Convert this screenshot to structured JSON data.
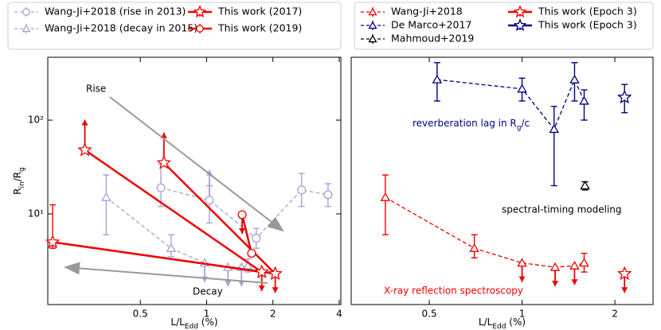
{
  "chart_data": [
    {
      "type": "scatter",
      "log_x": true,
      "log_y": true,
      "xlim": [
        0.19,
        4.07
      ],
      "ylim": [
        1.08,
        468
      ],
      "xticks": [
        0.5,
        1,
        2,
        4
      ],
      "yticks": [
        {
          "value": 10,
          "label": "10¹"
        },
        {
          "value": 100,
          "label": "10²"
        }
      ],
      "xlabel": [
        "L/L",
        "Edd",
        " (%)"
      ],
      "ylabel": [
        "R",
        "in",
        "/R",
        "g"
      ],
      "annotations": [
        "Rise",
        "Decay"
      ],
      "series": [
        {
          "name": "Wang-Ji+2018 (rise in 2013)",
          "color": "#a3a3d9",
          "marker": "circle",
          "linestyle": "dashed",
          "x": [
            0.62,
            1.03,
            1.68,
            2.7,
            3.56
          ],
          "values": [
            19,
            14,
            5.5,
            18,
            16
          ],
          "ylow": [
            12,
            8,
            4.3,
            12,
            12
          ],
          "yhigh": [
            34,
            20,
            7,
            27,
            21
          ],
          "limit": [
            null,
            "up",
            null,
            null,
            null
          ]
        },
        {
          "name": "Wang-Ji+2018 (decay in 2015)",
          "color": "#a3a3d9",
          "marker": "triangle",
          "linestyle": "dashed",
          "x": [
            0.35,
            0.69,
            0.98,
            1.25,
            1.44,
            1.54
          ],
          "values": [
            15,
            4.3,
            3.0,
            2.7,
            2.7,
            2.8
          ],
          "ylow": [
            6,
            3.5,
            null,
            null,
            null,
            2.4
          ],
          "yhigh": [
            26,
            6,
            null,
            null,
            null,
            3.3
          ],
          "limit": [
            null,
            null,
            "down",
            "down",
            "down",
            null
          ]
        },
        {
          "name": "This work (2017)",
          "color": "#ee0000",
          "marker": "star",
          "linestyle": "solid",
          "x": [
            0.28,
            1.78,
            0.2,
            2.05,
            0.64
          ],
          "values": [
            48,
            2.4,
            5,
            2.3,
            35
          ],
          "ylow": [
            null,
            null,
            4.3,
            null,
            null
          ],
          "yhigh": [
            null,
            null,
            12.5,
            null,
            null
          ],
          "limit": [
            "up",
            "down",
            null,
            "down",
            "up"
          ]
        },
        {
          "name": "This work (2019)",
          "color": "#ee0000",
          "marker": "circle",
          "linestyle": "solid",
          "x": [
            1.45,
            1.6
          ],
          "values": [
            9.8,
            3.8
          ],
          "ylow": [
            null,
            null
          ],
          "yhigh": [
            null,
            null
          ],
          "limit": [
            "down",
            null
          ]
        }
      ]
    },
    {
      "type": "scatter",
      "log_x": true,
      "log_y": true,
      "xlim": [
        0.279,
        2.66
      ],
      "ylim": [
        1.08,
        468
      ],
      "xticks": [
        0.5,
        1,
        2
      ],
      "xlabel": [
        "L/L",
        "Edd",
        " (%)"
      ],
      "annotations": [
        [
          "reverberation lag in R",
          "g",
          "/c"
        ],
        "spectral-timing modeling",
        "X-ray reflection spectroscopy"
      ],
      "series": [
        {
          "name": "Wang-Ji+2018",
          "color": "#ee0000",
          "marker": "triangle",
          "linestyle": "dashed",
          "x": [
            0.36,
            0.7,
            1.0,
            1.28,
            1.48,
            1.59
          ],
          "values": [
            15,
            4.3,
            3.0,
            2.7,
            2.8,
            3.0
          ],
          "ylow": [
            6,
            3.4,
            null,
            null,
            null,
            2.4
          ],
          "yhigh": [
            26,
            6,
            null,
            null,
            null,
            3.8
          ],
          "limit": [
            null,
            null,
            "down",
            "down",
            "down",
            null
          ]
        },
        {
          "name": "De Marco+2017",
          "color": "#00007f",
          "marker": "triangle",
          "linestyle": "dashed",
          "x": [
            0.53,
            1.0,
            1.27,
            1.48,
            1.59
          ],
          "values": [
            270,
            215,
            80,
            270,
            160
          ],
          "ylow": [
            160,
            160,
            20,
            160,
            100
          ],
          "yhigh": [
            410,
            280,
            140,
            410,
            210
          ],
          "limit": [
            null,
            null,
            null,
            null,
            null
          ]
        },
        {
          "name": "Mahmoud+2019",
          "color": "#000000",
          "marker": "triangle",
          "linestyle": "dashed",
          "x": [
            1.6
          ],
          "values": [
            20
          ],
          "ylow": [
            18
          ],
          "yhigh": [
            22
          ],
          "limit": [
            null
          ]
        },
        {
          "name": "This work (Epoch 3)",
          "color": "#ee0000",
          "marker": "star",
          "linestyle": "solid",
          "x": [
            2.15
          ],
          "values": [
            2.3
          ],
          "ylow": [
            null
          ],
          "yhigh": [
            null
          ],
          "limit": [
            "down"
          ]
        },
        {
          "name": "This work (Epoch 3)",
          "color": "#00007f",
          "marker": "star",
          "linestyle": "solid",
          "x": [
            2.15
          ],
          "values": [
            175
          ],
          "ylow": [
            120
          ],
          "yhigh": [
            240
          ],
          "limit": [
            null
          ]
        }
      ]
    }
  ]
}
